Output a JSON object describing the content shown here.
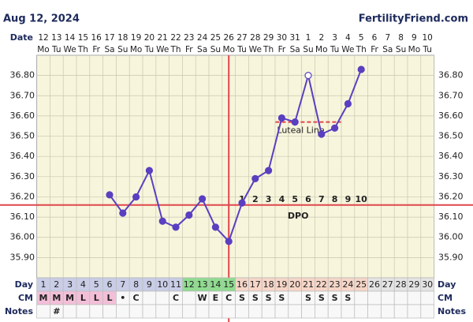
{
  "chart_data": {
    "type": "line",
    "title": "Aug 12, 2024",
    "brand": "FertilityFriend.com",
    "date_label": "Date",
    "dates": [
      "12",
      "13",
      "14",
      "15",
      "16",
      "17",
      "18",
      "19",
      "20",
      "21",
      "22",
      "23",
      "24",
      "25",
      "26",
      "27",
      "28",
      "29",
      "30",
      "31",
      "1",
      "2",
      "3",
      "4",
      "5",
      "6",
      "7",
      "8",
      "9",
      "10"
    ],
    "weekdays": [
      "Mo",
      "Tu",
      "We",
      "Th",
      "Fr",
      "Sa",
      "Su",
      "Mo",
      "Tu",
      "We",
      "Th",
      "Fr",
      "Sa",
      "Su",
      "Mo",
      "Tu",
      "We",
      "Th",
      "Fr",
      "Sa",
      "Su",
      "Mo",
      "Tu",
      "We",
      "Th",
      "Fr",
      "Sa",
      "Su",
      "Mo",
      "Tu"
    ],
    "day_label": "Day",
    "categories": [
      1,
      2,
      3,
      4,
      5,
      6,
      7,
      8,
      9,
      10,
      11,
      12,
      13,
      14,
      15,
      16,
      17,
      18,
      19,
      20,
      21,
      22,
      23,
      24,
      25,
      26,
      27,
      28,
      29,
      30
    ],
    "day_colors": [
      "#c9cde6",
      "#c9cde6",
      "#c9cde6",
      "#c9cde6",
      "#c9cde6",
      "#c9cde6",
      "#c9cde6",
      "#c9cde6",
      "#c9cde6",
      "#c9cde6",
      "#c9cde6",
      "#8fdc8f",
      "#8fdc8f",
      "#8fdc8f",
      "#8fdc8f",
      "#f6d6c8",
      "#f6d6c8",
      "#f6d6c8",
      "#f6d6c8",
      "#f6d6c8",
      "#f6d6c8",
      "#f6d6c8",
      "#f6d6c8",
      "#f6d6c8",
      "#f6d6c8",
      "#e4e4e4",
      "#e4e4e4",
      "#e4e4e4",
      "#e4e4e4",
      "#e4e4e4"
    ],
    "cm_label": "CM",
    "cm": [
      "M",
      "M",
      "M",
      "L",
      "L",
      "L",
      "•",
      "C",
      null,
      null,
      "C",
      null,
      "W",
      "E",
      "C",
      "S",
      "S",
      "S",
      "S",
      null,
      "S",
      "S",
      "S",
      "S",
      null,
      null,
      null,
      null,
      null,
      null
    ],
    "cm_colors": [
      "#f3bfd8",
      "#f3bfd8",
      "#f3bfd8",
      "#f3bfd8",
      "#f3bfd8",
      "#f3bfd8"
    ],
    "notes_label": "Notes",
    "notes": [
      null,
      "#",
      null,
      null,
      null,
      null,
      null,
      null,
      null,
      null,
      null,
      null,
      null,
      null,
      null,
      null,
      null,
      null,
      null,
      null,
      null,
      null,
      null,
      null,
      null,
      null,
      null,
      null,
      null,
      null
    ],
    "values": [
      null,
      null,
      null,
      null,
      null,
      36.21,
      36.12,
      36.2,
      36.33,
      36.08,
      36.05,
      36.11,
      36.19,
      36.05,
      35.98,
      36.17,
      36.29,
      36.33,
      36.59,
      36.57,
      36.8,
      36.51,
      36.54,
      36.66,
      36.83,
      null,
      null,
      null,
      null,
      null
    ],
    "color": "#5a3fc0",
    "open_markers": [
      20
    ],
    "ylim": [
      35.8,
      36.9
    ],
    "yticks": [
      {
        "value": 35.9,
        "label": "35.90"
      },
      {
        "value": 36.0,
        "label": "36.00"
      },
      {
        "value": 36.1,
        "label": "36.10"
      },
      {
        "value": 36.2,
        "label": "36.20"
      },
      {
        "value": 36.3,
        "label": "36.30"
      },
      {
        "value": 36.4,
        "label": "36.40"
      },
      {
        "value": 36.5,
        "label": "36.50"
      },
      {
        "value": 36.6,
        "label": "36.60"
      },
      {
        "value": 36.7,
        "label": "36.70"
      },
      {
        "value": 36.8,
        "label": "36.80"
      }
    ],
    "coverline": 36.16,
    "coverline_color": "#e0474c",
    "ovulation_index": 14,
    "luteal_line": {
      "label": "Luteal Line",
      "value": 36.57,
      "from_index": 18,
      "to_index": 22
    },
    "dpo_label": "DPO",
    "dpo": [
      null,
      null,
      null,
      null,
      null,
      null,
      null,
      null,
      null,
      null,
      null,
      null,
      null,
      null,
      null,
      1,
      2,
      3,
      4,
      5,
      6,
      7,
      8,
      9,
      10,
      null,
      null,
      null,
      null,
      null
    ],
    "grid": true
  }
}
